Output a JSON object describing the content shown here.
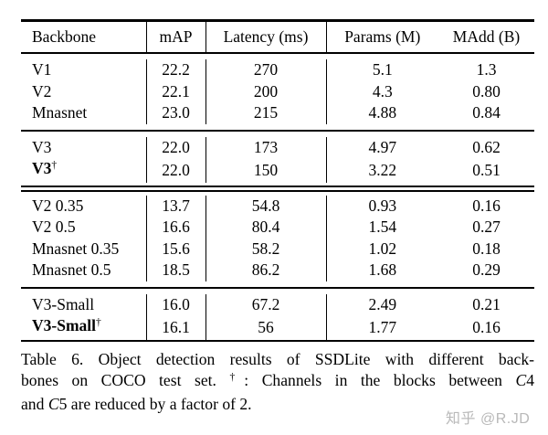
{
  "table": {
    "headers": [
      "Backbone",
      "mAP",
      "Latency (ms)",
      "Params (M)",
      "MAdd (B)"
    ],
    "dagger_symbol": "†",
    "sections": [
      {
        "rows": [
          {
            "name": "V1",
            "bold": false,
            "dagger": false,
            "values": [
              "22.2",
              "270",
              "5.1",
              "1.3"
            ]
          },
          {
            "name": "V2",
            "bold": false,
            "dagger": false,
            "values": [
              "22.1",
              "200",
              "4.3",
              "0.80"
            ]
          },
          {
            "name": "Mnasnet",
            "bold": false,
            "dagger": false,
            "values": [
              "23.0",
              "215",
              "4.88",
              "0.84"
            ]
          }
        ],
        "rule_after": "single"
      },
      {
        "rows": [
          {
            "name": "V3",
            "bold": false,
            "dagger": false,
            "values": [
              "22.0",
              "173",
              "4.97",
              "0.62"
            ]
          },
          {
            "name": "V3",
            "bold": true,
            "dagger": true,
            "values": [
              "22.0",
              "150",
              "3.22",
              "0.51"
            ]
          }
        ],
        "rule_after": "double"
      },
      {
        "rows": [
          {
            "name": "V2 0.35",
            "bold": false,
            "dagger": false,
            "values": [
              "13.7",
              "54.8",
              "0.93",
              "0.16"
            ]
          },
          {
            "name": "V2 0.5",
            "bold": false,
            "dagger": false,
            "values": [
              "16.6",
              "80.4",
              "1.54",
              "0.27"
            ]
          },
          {
            "name": "Mnasnet 0.35",
            "bold": false,
            "dagger": false,
            "values": [
              "15.6",
              "58.2",
              "1.02",
              "0.18"
            ]
          },
          {
            "name": "Mnasnet 0.5",
            "bold": false,
            "dagger": false,
            "values": [
              "18.5",
              "86.2",
              "1.68",
              "0.29"
            ]
          }
        ],
        "rule_after": "single"
      },
      {
        "rows": [
          {
            "name": "V3-Small",
            "bold": false,
            "dagger": false,
            "values": [
              "16.0",
              "67.2",
              "2.49",
              "0.21"
            ]
          },
          {
            "name": "V3-Small",
            "bold": true,
            "dagger": true,
            "values": [
              "16.1",
              "56",
              "1.77",
              "0.16"
            ]
          }
        ],
        "rule_after": "none"
      }
    ]
  },
  "caption": {
    "line1": "Table 6. Object detection results of SSDLite with different back-",
    "line2": {
      "pre": "bones on COCO test set. ",
      "dagger": "†",
      "mid": ": Channels in the blocks between ",
      "var": "C",
      "num": "4"
    },
    "line3": {
      "pre": "and ",
      "var": "C",
      "num": "5",
      "post": " are reduced by a factor of 2."
    }
  },
  "watermark": {
    "text": "知乎 @R.JD",
    "color": "#b9b9b9"
  }
}
